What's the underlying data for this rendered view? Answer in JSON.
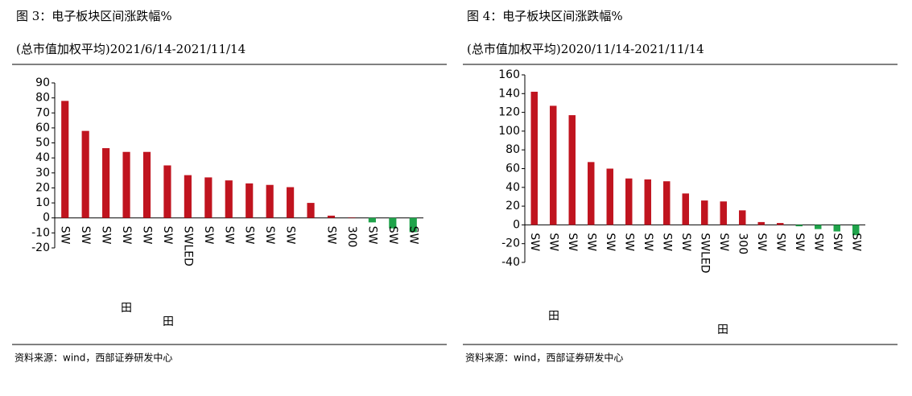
{
  "chart_data": [
    {
      "type": "bar",
      "title": "图 3：电子板块区间涨跌幅%",
      "subtitle": "(总市值加权平均)2021/6/14-2021/11/14",
      "categories": [
        "SW",
        "SW",
        "SW",
        "SW",
        "SW",
        "SW",
        "SWLED",
        "SW",
        "SW",
        "SW",
        "SW",
        "SW",
        null,
        "SW",
        "300",
        "SW",
        "SW",
        "SW"
      ],
      "values": [
        78,
        58,
        46.5,
        44,
        44,
        35,
        28.5,
        27,
        25,
        23,
        22,
        20.5,
        10,
        1.5,
        0.3,
        -3,
        -7,
        -9.5
      ],
      "color": "#c0141f",
      "negative_color": "#1fa34a",
      "ylim": [
        -20,
        90
      ],
      "yticks": [
        -20,
        -10,
        0,
        10,
        20,
        30,
        40,
        50,
        60,
        70,
        80,
        90
      ],
      "annotations": [
        "田",
        "田"
      ],
      "source": "资料来源：wind，西部证券研发中心"
    },
    {
      "type": "bar",
      "title": "图 4：电子板块区间涨跌幅%",
      "subtitle": "(总市值加权平均)2020/11/14-2021/11/14",
      "categories": [
        "SW",
        "SW",
        "SW",
        "SW",
        "SW",
        "SW",
        "SW",
        "SW",
        "SW",
        "SWLED",
        "SW",
        "300",
        "SW",
        "SW",
        "SW",
        "SW",
        "SW",
        "SW"
      ],
      "values": [
        142,
        127,
        117,
        67,
        60,
        49.5,
        48.5,
        46.5,
        33.5,
        26,
        25,
        15.5,
        3,
        2,
        -1.5,
        -4.5,
        -7,
        -11
      ],
      "color": "#c0141f",
      "negative_color": "#1fa34a",
      "ylim": [
        -40,
        160
      ],
      "yticks": [
        -40,
        -20,
        0,
        20,
        40,
        60,
        80,
        100,
        120,
        140,
        160
      ],
      "annotations": [
        "田",
        "田"
      ],
      "source": "资料来源：wind，西部证券研发中心"
    }
  ]
}
